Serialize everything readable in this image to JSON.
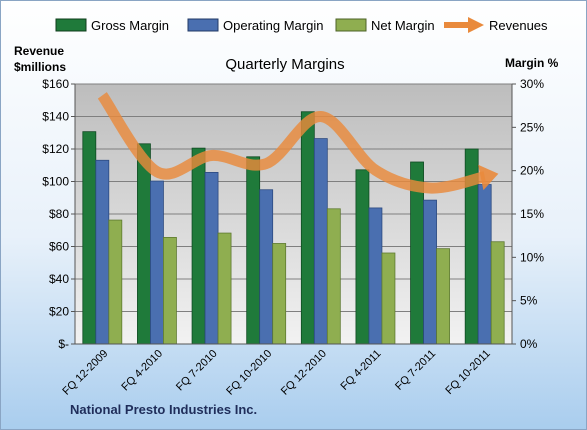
{
  "chart_data": {
    "type": "bar",
    "title": "Quarterly Margins",
    "footer": "National Presto Industries Inc.",
    "left_axis_label_line1": "Revenue",
    "left_axis_label_line2": "$millions",
    "right_axis_label": "Margin %",
    "categories": [
      "FQ 12-2009",
      "FQ 4-2010",
      "FQ 7-2010",
      "FQ 10-2010",
      "FQ 12-2010",
      "FQ 4-2011",
      "FQ 7-2011",
      "FQ 10-2011"
    ],
    "left_axis": {
      "ylim": [
        0,
        160
      ],
      "ticks": [
        0,
        20,
        40,
        60,
        80,
        100,
        120,
        140,
        160
      ],
      "tick_labels": [
        "$-",
        "$20",
        "$40",
        "$60",
        "$80",
        "$100",
        "$120",
        "$140",
        "$160"
      ]
    },
    "right_axis": {
      "ylim": [
        0,
        30
      ],
      "ticks": [
        0,
        5,
        10,
        15,
        20,
        25,
        30
      ],
      "tick_labels": [
        "0%",
        "5%",
        "10%",
        "15%",
        "20%",
        "25%",
        "30%"
      ]
    },
    "series": [
      {
        "name": "Gross Margin",
        "kind": "bar",
        "axis": "right",
        "color": "#1f7a3a",
        "values": [
          24.5,
          23.1,
          22.6,
          21.6,
          26.8,
          20.1,
          21.0,
          22.5
        ]
      },
      {
        "name": "Operating Margin",
        "kind": "bar",
        "axis": "right",
        "color": "#4a6fb0",
        "values": [
          21.2,
          18.8,
          19.8,
          17.8,
          23.7,
          15.7,
          16.6,
          18.4
        ]
      },
      {
        "name": "Net Margin",
        "kind": "bar",
        "axis": "right",
        "color": "#8fae50",
        "values": [
          14.3,
          12.3,
          12.8,
          11.6,
          15.6,
          10.5,
          11.0,
          11.8
        ]
      },
      {
        "name": "Revenues",
        "kind": "line",
        "axis": "left",
        "color": "#e98a3c",
        "values": [
          153,
          106,
          116,
          111,
          140,
          107,
          96,
          103
        ]
      }
    ],
    "grid": true,
    "legend_position": "top"
  }
}
